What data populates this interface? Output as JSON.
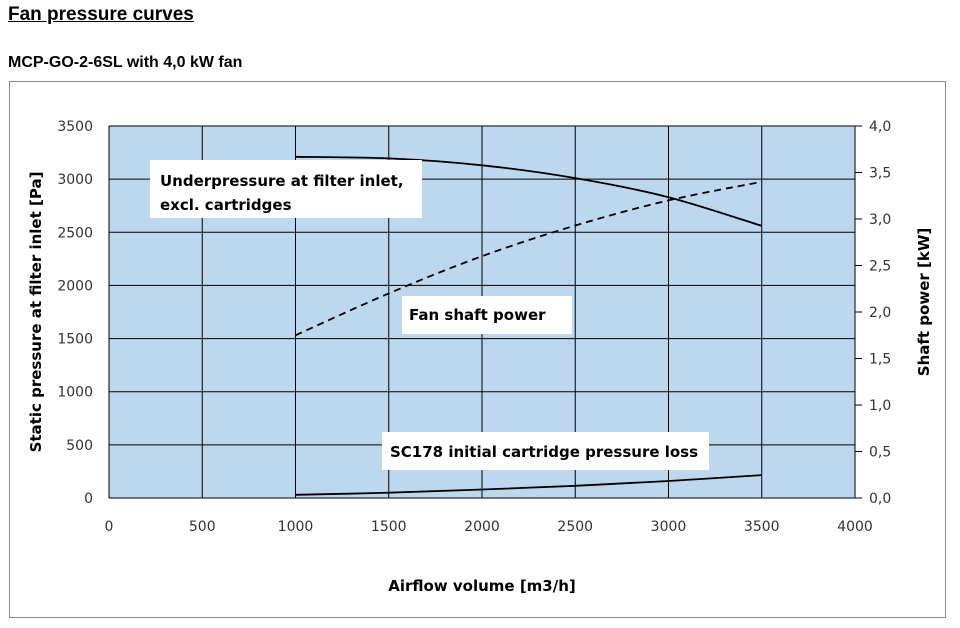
{
  "page": {
    "title": "Fan pressure curves",
    "subtitle": "MCP-GO-2-6SL with 4,0 kW fan"
  },
  "colors": {
    "plot_bg": "#bdd7ee",
    "grid": "#000000",
    "line": "#000000"
  },
  "chart_data": {
    "type": "line",
    "title": "",
    "xlabel": "Airflow volume [m3/h]",
    "ylabel": "Static pressure at filter inlet [Pa]",
    "y2label": "Shaft power [kW]",
    "xlim": [
      0,
      4000
    ],
    "ylim": [
      0,
      3500
    ],
    "y2lim": [
      0,
      4
    ],
    "grid": true,
    "x_ticks": [
      0,
      500,
      1000,
      1500,
      2000,
      2500,
      3000,
      3500,
      4000
    ],
    "x_tick_labels": [
      "0",
      "500",
      "1000",
      "1500",
      "2000",
      "2500",
      "3000",
      "3500",
      "4000"
    ],
    "y_ticks": [
      0,
      500,
      1000,
      1500,
      2000,
      2500,
      3000,
      3500
    ],
    "y_tick_labels": [
      "0",
      "500",
      "1000",
      "1500",
      "2000",
      "2500",
      "3000",
      "3500"
    ],
    "y2_ticks": [
      0,
      0.5,
      1.0,
      1.5,
      2.0,
      2.5,
      3.0,
      3.5,
      4.0
    ],
    "y2_tick_labels": [
      "0,0",
      "0,5",
      "1,0",
      "1,5",
      "2,0",
      "2,5",
      "3,0",
      "3,5",
      "4,0"
    ],
    "series": [
      {
        "name": "Underpressure at filter inlet, excl. cartridges",
        "axis": "left",
        "style": "solid",
        "x": [
          1000,
          1500,
          2000,
          2500,
          3000,
          3500
        ],
        "values": [
          3210,
          3195,
          3130,
          3010,
          2830,
          2560
        ]
      },
      {
        "name": "Fan shaft power",
        "axis": "right",
        "style": "dashed",
        "x": [
          1000,
          1500,
          2000,
          2500,
          3000,
          3500
        ],
        "values": [
          1.75,
          2.2,
          2.6,
          2.93,
          3.2,
          3.4
        ]
      },
      {
        "name": "SC178 initial cartridge pressure loss",
        "axis": "left",
        "style": "solid",
        "x": [
          1000,
          1500,
          2000,
          2500,
          3000,
          3500
        ],
        "values": [
          30,
          50,
          80,
          115,
          160,
          215
        ]
      }
    ],
    "annotations": [
      {
        "lines": [
          "Underpressure at filter inlet,",
          "excl. cartridges"
        ]
      },
      {
        "lines": [
          "Fan shaft power"
        ]
      },
      {
        "lines": [
          "SC178 initial cartridge pressure loss"
        ]
      }
    ]
  }
}
